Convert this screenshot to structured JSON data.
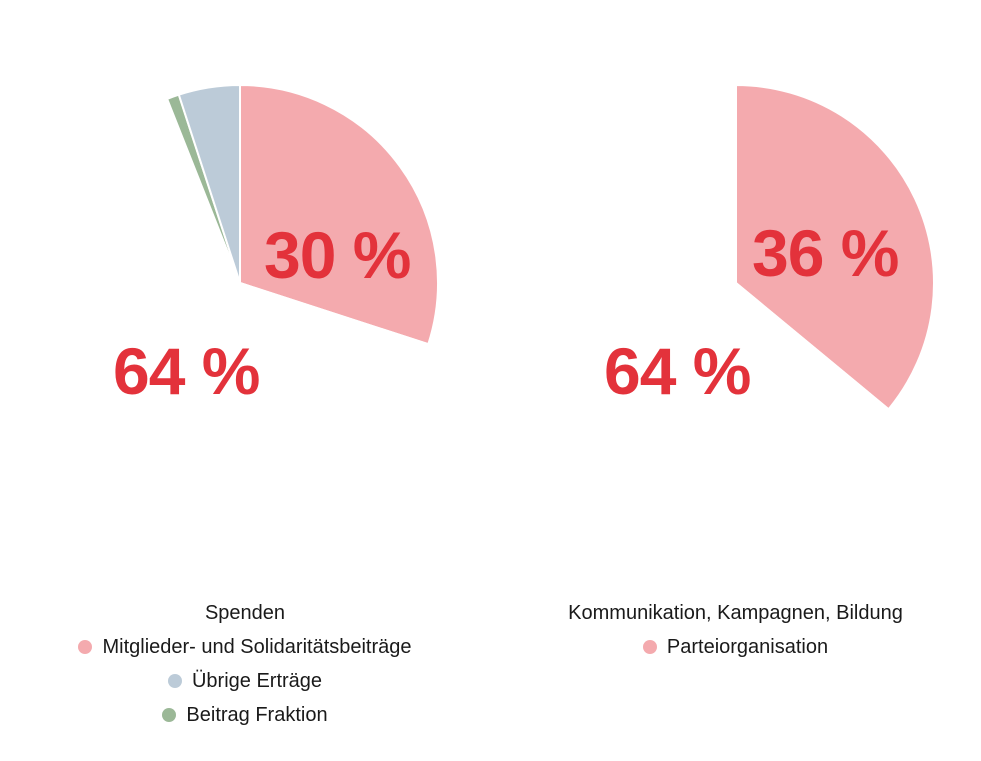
{
  "colors": {
    "pink": "#f4aaae",
    "blue": "#bccbd8",
    "green": "#9bb897",
    "label_red": "#e3323b"
  },
  "chart_data": [
    {
      "type": "pie",
      "slices": [
        {
          "name": "Spenden",
          "value": 64,
          "color": "#ffffff",
          "label": "64 %"
        },
        {
          "name": "Mitglieder- und Solidaritätsbeiträge",
          "value": 30,
          "color": "#f4aaae",
          "label": "30 %"
        },
        {
          "name": "Übrige Erträge",
          "value": 5,
          "color": "#bccbd8",
          "label": ""
        },
        {
          "name": "Beitrag Fraktion",
          "value": 1,
          "color": "#9bb897",
          "label": ""
        }
      ],
      "legend": [
        {
          "label": "Spenden",
          "color": "#ffffff"
        },
        {
          "label": "Mitglieder- und Solidaritätsbeiträge",
          "color": "#f4aaae"
        },
        {
          "label": "Übrige Erträge",
          "color": "#bccbd8"
        },
        {
          "label": "Beitrag Fraktion",
          "color": "#9bb897"
        }
      ],
      "legend_placement": "bottom"
    },
    {
      "type": "pie",
      "slices": [
        {
          "name": "Kommunikation, Kampagnen, Bildung",
          "value": 64,
          "color": "#ffffff",
          "label": "64 %"
        },
        {
          "name": "Parteiorganisation",
          "value": 36,
          "color": "#f4aaae",
          "label": "36 %"
        }
      ],
      "legend": [
        {
          "label": "Kommunikation, Kampagnen, Bildung",
          "color": "#ffffff"
        },
        {
          "label": "Parteiorganisation",
          "color": "#f4aaae"
        }
      ],
      "legend_placement": "bottom"
    }
  ]
}
